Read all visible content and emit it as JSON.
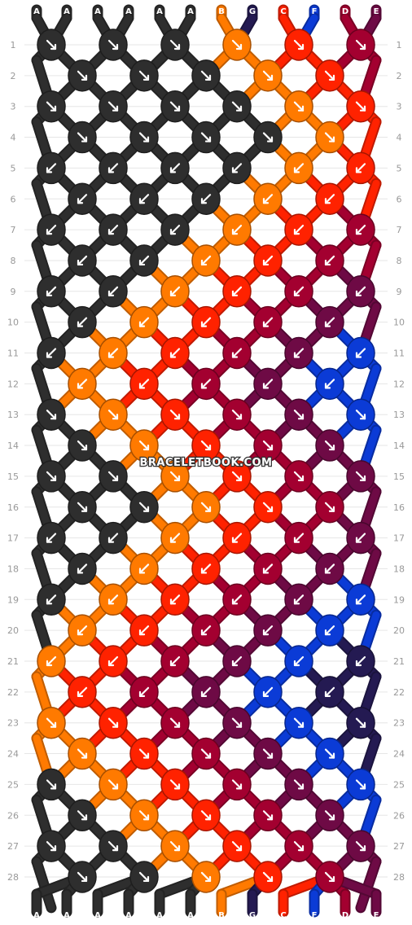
{
  "watermark": "BRACELETBOOK.COM",
  "colors": {
    "A": "#2e2e2e",
    "B": "#ff7a00",
    "G": "#241a52",
    "C": "#ff2200",
    "F": "#0b3bd6",
    "D": "#a30030",
    "E": "#6e0a45"
  },
  "top_strings": [
    "A",
    "A",
    "A",
    "A",
    "A",
    "A",
    "B",
    "G",
    "C",
    "F",
    "D",
    "E"
  ],
  "bottom_strings": [
    "A",
    "A",
    "A",
    "A",
    "A",
    "A",
    "B",
    "G",
    "C",
    "F",
    "D",
    "E"
  ],
  "row_labels": [
    "1",
    "2",
    "3",
    "4",
    "5",
    "6",
    "7",
    "8",
    "9",
    "10",
    "11",
    "12",
    "13",
    "14",
    "15",
    "16",
    "17",
    "18",
    "19",
    "20",
    "21",
    "22",
    "23",
    "24",
    "25",
    "26",
    "27",
    "28"
  ],
  "knots": [
    [
      "A",
      "A",
      "A",
      "B",
      "C",
      "D"
    ],
    [
      "A",
      "A",
      "A",
      "B",
      "C"
    ],
    [
      "A",
      "A",
      "A",
      "A",
      "B",
      "C"
    ],
    [
      "A",
      "A",
      "A",
      "A",
      "B"
    ],
    [
      "A",
      "A",
      "A",
      "A",
      "B",
      "C"
    ],
    [
      "A",
      "A",
      "A",
      "B",
      "C"
    ],
    [
      "A",
      "A",
      "A",
      "B",
      "C",
      "D"
    ],
    [
      "A",
      "A",
      "B",
      "C",
      "D"
    ],
    [
      "A",
      "A",
      "B",
      "C",
      "D",
      "E"
    ],
    [
      "A",
      "B",
      "C",
      "D",
      "E"
    ],
    [
      "A",
      "B",
      "C",
      "D",
      "E",
      "F"
    ],
    [
      "B",
      "C",
      "D",
      "E",
      "F"
    ],
    [
      "A",
      "B",
      "C",
      "D",
      "E",
      "F"
    ],
    [
      "A",
      "B",
      "C",
      "D",
      "E"
    ],
    [
      "A",
      "A",
      "B",
      "C",
      "D",
      "E"
    ],
    [
      "A",
      "A",
      "B",
      "C",
      "D"
    ],
    [
      "A",
      "A",
      "B",
      "C",
      "D",
      "E"
    ],
    [
      "A",
      "B",
      "C",
      "D",
      "E"
    ],
    [
      "A",
      "B",
      "C",
      "D",
      "E",
      "F"
    ],
    [
      "B",
      "C",
      "D",
      "E",
      "F"
    ],
    [
      "B",
      "C",
      "D",
      "E",
      "F",
      "G"
    ],
    [
      "C",
      "D",
      "E",
      "F",
      "G"
    ],
    [
      "B",
      "C",
      "D",
      "E",
      "F",
      "G"
    ],
    [
      "B",
      "C",
      "D",
      "E",
      "F"
    ],
    [
      "A",
      "B",
      "C",
      "D",
      "E",
      "F"
    ],
    [
      "A",
      "B",
      "C",
      "D",
      "E"
    ],
    [
      "A",
      "A",
      "B",
      "C",
      "D",
      "E"
    ],
    [
      "A",
      "A",
      "B",
      "C",
      "D"
    ]
  ],
  "arrows": [
    [
      "dr",
      "dr",
      "dr",
      "dr",
      "dr",
      "dr"
    ],
    [
      "dr",
      "dr",
      "dr",
      "dr",
      "dr"
    ],
    [
      "dr",
      "dr",
      "dr",
      "dr",
      "dr",
      "dr"
    ],
    [
      "dr",
      "dr",
      "dr",
      "dr",
      "dr"
    ],
    [
      "dl",
      "dl",
      "dl",
      "dl",
      "dl",
      "dl"
    ],
    [
      "dl",
      "dl",
      "dl",
      "dl",
      "dl"
    ],
    [
      "dl",
      "dl",
      "dl",
      "dl",
      "dl",
      "dl"
    ],
    [
      "dl",
      "dl",
      "dl",
      "dl",
      "dl"
    ],
    [
      "dl",
      "dl",
      "dl",
      "dl",
      "dl",
      "dl"
    ],
    [
      "dl",
      "dl",
      "dl",
      "dl",
      "dl"
    ],
    [
      "dl",
      "dl",
      "dl",
      "dl",
      "dl",
      "dl"
    ],
    [
      "dl",
      "dl",
      "dl",
      "dl",
      "dl"
    ],
    [
      "dr",
      "dr",
      "dr",
      "dr",
      "dr",
      "dr"
    ],
    [
      "dr",
      "dr",
      "dr",
      "dr",
      "dr"
    ],
    [
      "dr",
      "dr",
      "dr",
      "dr",
      "dr",
      "dr"
    ],
    [
      "dr",
      "dr",
      "dr",
      "dr",
      "dr"
    ],
    [
      "dl",
      "dl",
      "dl",
      "dl",
      "dl",
      "dl"
    ],
    [
      "dl",
      "dl",
      "dl",
      "dl",
      "dl"
    ],
    [
      "dl",
      "dl",
      "dl",
      "dl",
      "dl",
      "dl"
    ],
    [
      "dl",
      "dl",
      "dl",
      "dl",
      "dl"
    ],
    [
      "dl",
      "dl",
      "dl",
      "dl",
      "dl",
      "dl"
    ],
    [
      "dl",
      "dl",
      "dl",
      "dl",
      "dl"
    ],
    [
      "dr",
      "dr",
      "dr",
      "dr",
      "dr",
      "dr"
    ],
    [
      "dr",
      "dr",
      "dr",
      "dr",
      "dr"
    ],
    [
      "dr",
      "dr",
      "dr",
      "dr",
      "dr",
      "dr"
    ],
    [
      "dr",
      "dr",
      "dr",
      "dr",
      "dr"
    ],
    [
      "dr",
      "dr",
      "dr",
      "dr",
      "dr",
      "dr"
    ],
    [
      "dr",
      "dr",
      "dr",
      "dr",
      "dr"
    ]
  ]
}
